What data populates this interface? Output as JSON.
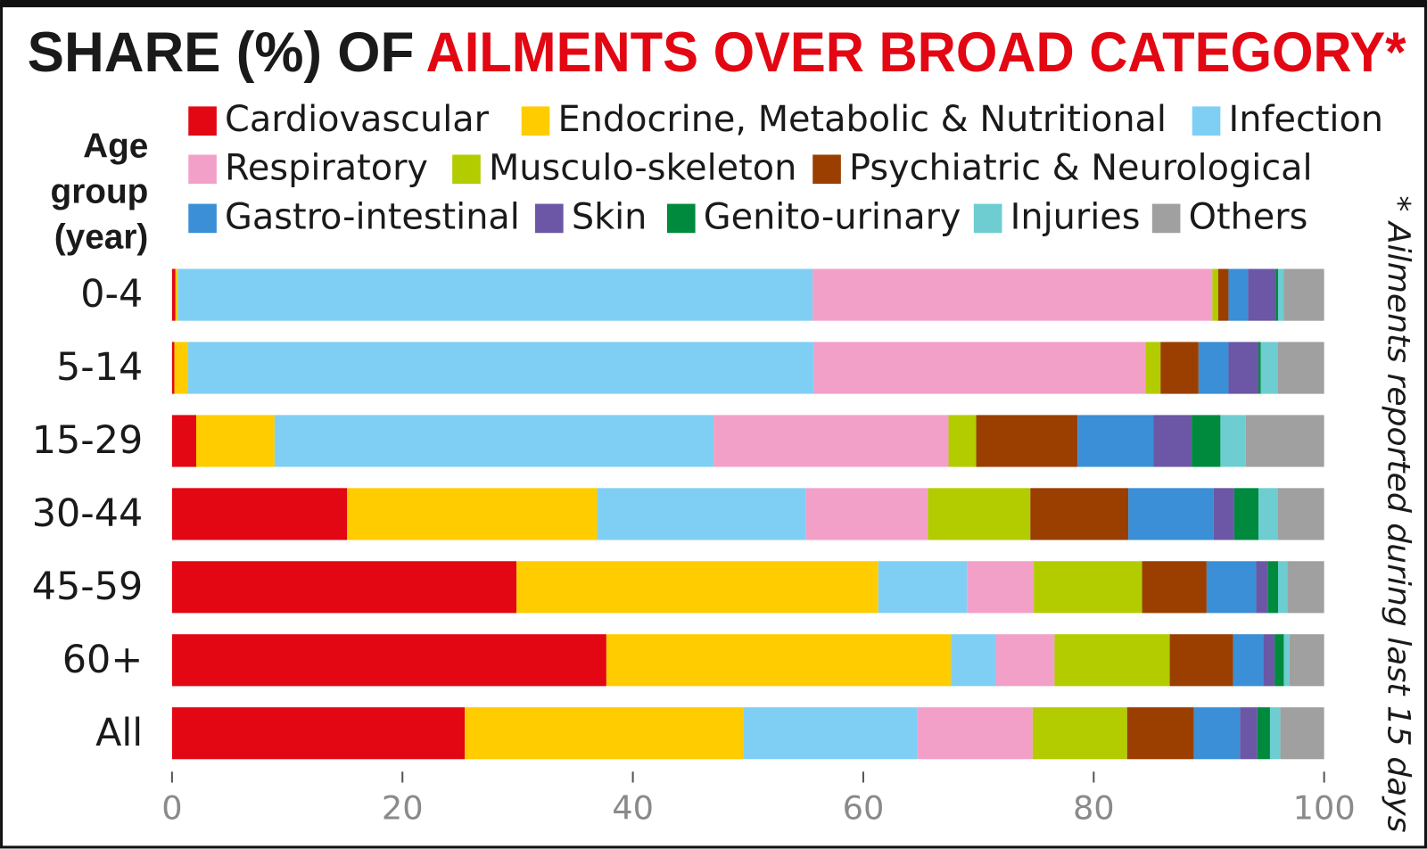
{
  "chart_data": {
    "type": "stacked-bar-horizontal",
    "title_prefix": "SHARE (%) OF",
    "title": "AILMENTS OVER BROAD CATEGORY*",
    "y_label": [
      "Age",
      "group",
      "(year)"
    ],
    "note": "* Ailments reported during last 15 days",
    "categories": [
      "0-4",
      "5-14",
      "15-29",
      "30-44",
      "45-59",
      "60+",
      "All"
    ],
    "xlim": [
      0,
      100
    ],
    "xticks": [
      0,
      20,
      40,
      60,
      80,
      100
    ],
    "series": [
      {
        "name": "Cardiovascular",
        "color": "#e30613",
        "values": [
          0.3,
          0.2,
          2.1,
          15.2,
          29.9,
          37.7,
          25.4
        ]
      },
      {
        "name": "Endocrine, Metabolic & Nutritional",
        "color": "#ffcc00",
        "values": [
          0.2,
          1.2,
          6.8,
          21.7,
          31.4,
          29.9,
          24.2
        ]
      },
      {
        "name": "Infection",
        "color": "#7fcff5",
        "values": [
          55.1,
          54.3,
          38.1,
          18.1,
          7.7,
          3.9,
          15.1
        ]
      },
      {
        "name": "Respiratory",
        "color": "#f3a0c8",
        "values": [
          34.7,
          28.8,
          20.4,
          10.6,
          5.8,
          5.1,
          10.0
        ]
      },
      {
        "name": "Musculo-skeleton",
        "color": "#b2cc00",
        "values": [
          0.5,
          1.3,
          2.4,
          8.9,
          9.4,
          10.0,
          8.2
        ]
      },
      {
        "name": "Psychiatric & Neurological",
        "color": "#9a3f00",
        "values": [
          0.9,
          3.3,
          8.8,
          8.5,
          5.6,
          5.5,
          5.8
        ]
      },
      {
        "name": "Gastro-intestinal",
        "color": "#3a8fd6",
        "values": [
          1.7,
          2.6,
          6.6,
          7.4,
          4.3,
          2.6,
          4.0
        ]
      },
      {
        "name": "Skin",
        "color": "#6b57a5",
        "values": [
          2.4,
          2.6,
          3.3,
          1.8,
          1.0,
          1.0,
          1.5
        ]
      },
      {
        "name": "Genito-urinary",
        "color": "#008a3e",
        "values": [
          0.2,
          0.2,
          2.5,
          2.1,
          0.9,
          0.8,
          1.1
        ]
      },
      {
        "name": "Injuries",
        "color": "#6dcdd0",
        "values": [
          0.5,
          1.5,
          2.2,
          1.7,
          0.8,
          0.5,
          0.9
        ]
      },
      {
        "name": "Others",
        "color": "#a0a0a0",
        "values": [
          3.5,
          4.0,
          6.8,
          4.0,
          3.2,
          3.0,
          3.8
        ]
      }
    ]
  }
}
